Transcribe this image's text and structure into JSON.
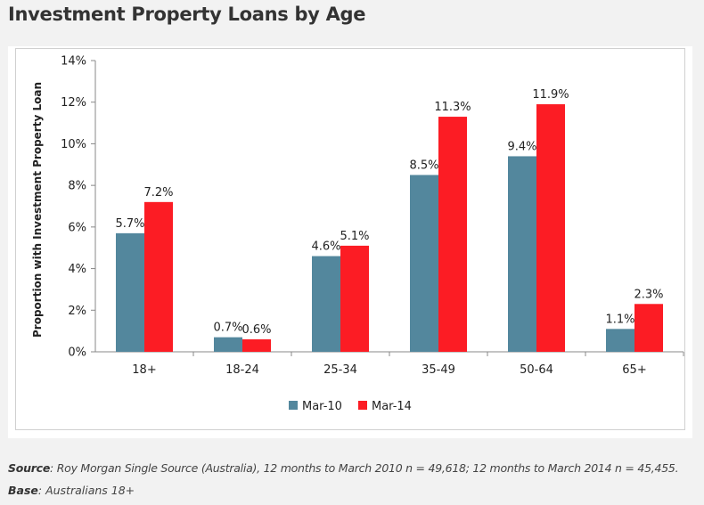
{
  "page": {
    "title": "Investment Property Loans by Age"
  },
  "footer": {
    "source_label": "Source",
    "source_text": ": Roy Morgan Single Source (Australia), 12 months to March 2010 n = 49,618; 12 months to March 2014 n = 45,455.",
    "base_label": "Base",
    "base_text": ": Australians 18+"
  },
  "chart_data": {
    "type": "bar",
    "title": "",
    "xlabel": "",
    "ylabel": "Proportion with Investment Property Loan",
    "categories": [
      "18+",
      "18-24",
      "25-34",
      "35-49",
      "50-64",
      "65+"
    ],
    "series": [
      {
        "name": "Mar-10",
        "color": "#53879d",
        "values": [
          5.7,
          0.7,
          4.6,
          8.5,
          9.4,
          1.1
        ],
        "labels": [
          "5.7%",
          "0.7%",
          "4.6%",
          "8.5%",
          "9.4%",
          "1.1%"
        ]
      },
      {
        "name": "Mar-14",
        "color": "#fc1c24",
        "values": [
          7.2,
          0.6,
          5.1,
          11.3,
          11.9,
          2.3
        ],
        "labels": [
          "7.2%",
          "0.6%",
          "5.1%",
          "11.3%",
          "11.9%",
          "2.3%"
        ]
      }
    ],
    "ylim": [
      0,
      14
    ],
    "yticks": [
      0,
      2,
      4,
      6,
      8,
      10,
      12,
      14
    ],
    "ytick_labels": [
      "0%",
      "2%",
      "4%",
      "6%",
      "8%",
      "10%",
      "12%",
      "14%"
    ],
    "grid": false,
    "legend": "bottom-center"
  }
}
